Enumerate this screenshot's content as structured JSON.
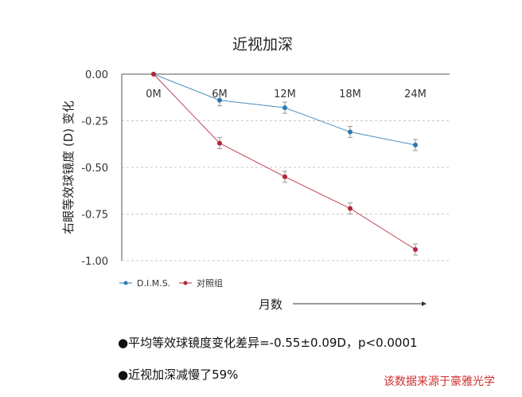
{
  "chart_data": {
    "type": "line",
    "title": "近视加深",
    "ylabel": "右眼等效球镜度 (D) 变化",
    "xlabel": "月数",
    "categories": [
      "0M",
      "6M",
      "12M",
      "18M",
      "24M"
    ],
    "yticks": [
      "0.00",
      "-0.25",
      "-0.50",
      "-0.75",
      "-1.00"
    ],
    "ylim": [
      -1.0,
      0.0
    ],
    "grid": true,
    "legend_position": "bottom-left",
    "series": [
      {
        "name": "D.I.M.S.",
        "color": "#2a7ab0",
        "values": [
          0.0,
          -0.14,
          -0.18,
          -0.31,
          -0.38
        ]
      },
      {
        "name": "对照组",
        "color": "#b3263b",
        "values": [
          0.0,
          -0.37,
          -0.55,
          -0.72,
          -0.94
        ]
      }
    ]
  },
  "notes": [
    "●平均等效球镜度变化差异=-0.55±0.09D，p<0.0001",
    "●近视加深减慢了59%"
  ],
  "source": "该数据来源于豪雅光学"
}
